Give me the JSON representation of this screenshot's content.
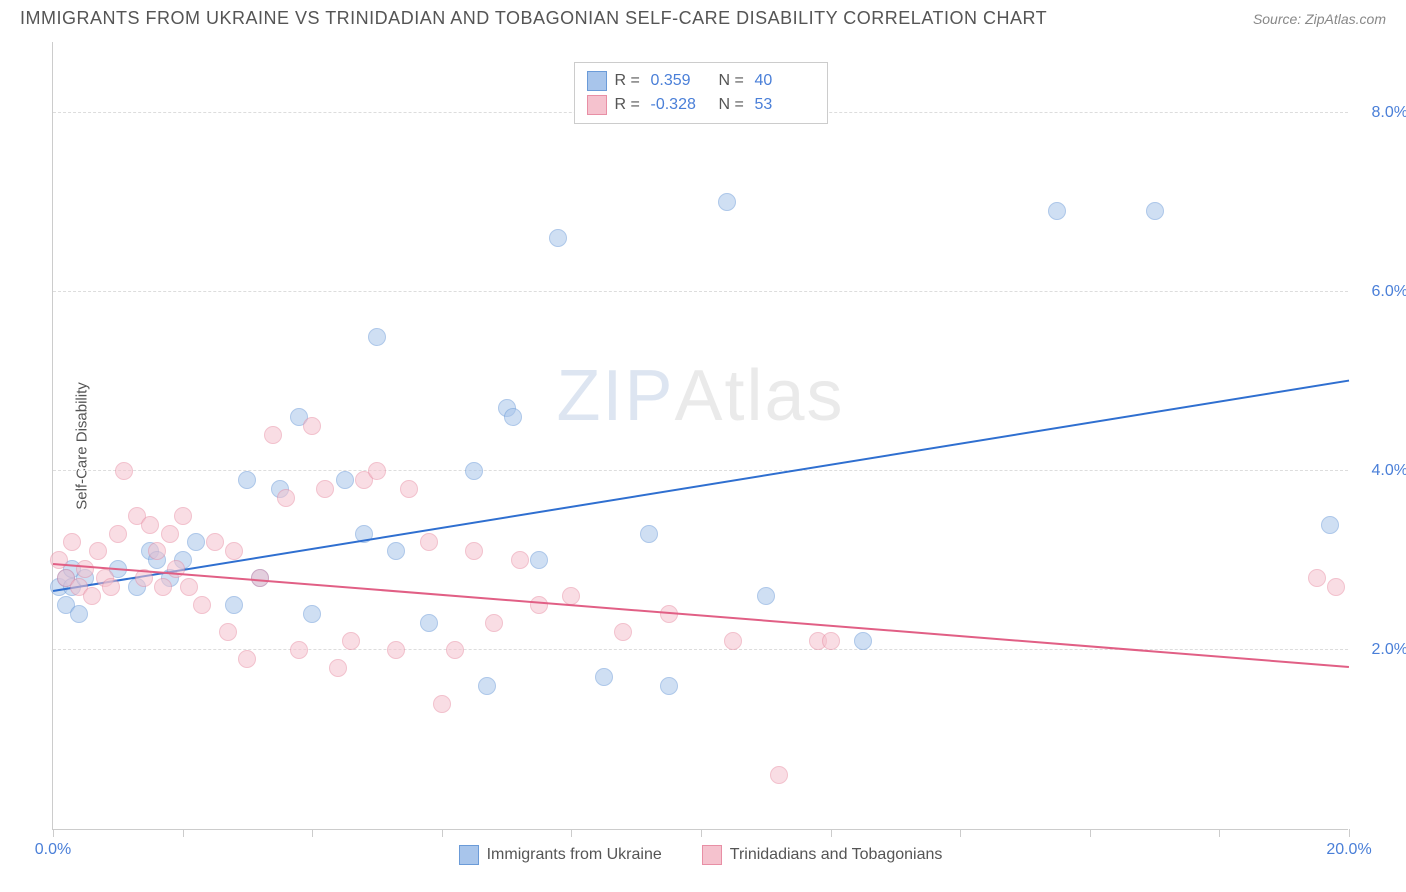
{
  "title": "IMMIGRANTS FROM UKRAINE VS TRINIDADIAN AND TOBAGONIAN SELF-CARE DISABILITY CORRELATION CHART",
  "source": "Source: ZipAtlas.com",
  "y_axis_label": "Self-Care Disability",
  "watermark_a": "ZIP",
  "watermark_b": "Atlas",
  "chart": {
    "type": "scatter",
    "xlim": [
      0,
      20
    ],
    "ylim": [
      0,
      8.8
    ],
    "y_ticks": [
      2.0,
      4.0,
      6.0,
      8.0
    ],
    "y_tick_labels": [
      "2.0%",
      "4.0%",
      "6.0%",
      "8.0%"
    ],
    "x_ticks": [
      0,
      2,
      4,
      6,
      8,
      10,
      12,
      14,
      16,
      18,
      20
    ],
    "x_tick_labels_shown": {
      "0": "0.0%",
      "20": "20.0%"
    },
    "grid_color": "#dddddd",
    "axis_color": "#cccccc",
    "background": "#ffffff",
    "point_radius": 9,
    "point_opacity": 0.55,
    "series": [
      {
        "id": "ukraine",
        "label": "Immigrants from Ukraine",
        "color_fill": "#a8c5eb",
        "color_stroke": "#6b9bd8",
        "R": "0.359",
        "N": "40",
        "trend": {
          "x1": 0,
          "y1": 2.65,
          "x2": 20,
          "y2": 5.0,
          "color": "#2f6fd0",
          "width": 2
        },
        "points": [
          [
            0.1,
            2.7
          ],
          [
            0.2,
            2.8
          ],
          [
            0.2,
            2.5
          ],
          [
            0.3,
            2.7
          ],
          [
            0.3,
            2.9
          ],
          [
            0.4,
            2.4
          ],
          [
            0.5,
            2.8
          ],
          [
            1.0,
            2.9
          ],
          [
            1.3,
            2.7
          ],
          [
            1.5,
            3.1
          ],
          [
            1.6,
            3.0
          ],
          [
            1.8,
            2.8
          ],
          [
            2.0,
            3.0
          ],
          [
            2.2,
            3.2
          ],
          [
            2.8,
            2.5
          ],
          [
            3.0,
            3.9
          ],
          [
            3.2,
            2.8
          ],
          [
            3.5,
            3.8
          ],
          [
            3.8,
            4.6
          ],
          [
            4.0,
            2.4
          ],
          [
            4.5,
            3.9
          ],
          [
            4.8,
            3.3
          ],
          [
            5.0,
            5.5
          ],
          [
            5.3,
            3.1
          ],
          [
            5.8,
            2.3
          ],
          [
            6.5,
            4.0
          ],
          [
            6.7,
            1.6
          ],
          [
            7.0,
            4.7
          ],
          [
            7.1,
            4.6
          ],
          [
            7.5,
            3.0
          ],
          [
            7.8,
            6.6
          ],
          [
            8.5,
            1.7
          ],
          [
            9.2,
            3.3
          ],
          [
            9.5,
            1.6
          ],
          [
            10.4,
            7.0
          ],
          [
            11.0,
            2.6
          ],
          [
            12.5,
            2.1
          ],
          [
            15.5,
            6.9
          ],
          [
            17.0,
            6.9
          ],
          [
            19.7,
            3.4
          ]
        ]
      },
      {
        "id": "trinidad",
        "label": "Trinidadians and Tobagonians",
        "color_fill": "#f5c2ce",
        "color_stroke": "#e88fa5",
        "R": "-0.328",
        "N": "53",
        "trend": {
          "x1": 0,
          "y1": 2.95,
          "x2": 20,
          "y2": 1.8,
          "color": "#e15f85",
          "width": 2
        },
        "points": [
          [
            0.1,
            3.0
          ],
          [
            0.2,
            2.8
          ],
          [
            0.3,
            3.2
          ],
          [
            0.4,
            2.7
          ],
          [
            0.5,
            2.9
          ],
          [
            0.6,
            2.6
          ],
          [
            0.7,
            3.1
          ],
          [
            0.8,
            2.8
          ],
          [
            0.9,
            2.7
          ],
          [
            1.0,
            3.3
          ],
          [
            1.1,
            4.0
          ],
          [
            1.3,
            3.5
          ],
          [
            1.4,
            2.8
          ],
          [
            1.5,
            3.4
          ],
          [
            1.6,
            3.1
          ],
          [
            1.7,
            2.7
          ],
          [
            1.8,
            3.3
          ],
          [
            1.9,
            2.9
          ],
          [
            2.0,
            3.5
          ],
          [
            2.1,
            2.7
          ],
          [
            2.3,
            2.5
          ],
          [
            2.5,
            3.2
          ],
          [
            2.7,
            2.2
          ],
          [
            2.8,
            3.1
          ],
          [
            3.0,
            1.9
          ],
          [
            3.2,
            2.8
          ],
          [
            3.4,
            4.4
          ],
          [
            3.6,
            3.7
          ],
          [
            3.8,
            2.0
          ],
          [
            4.0,
            4.5
          ],
          [
            4.2,
            3.8
          ],
          [
            4.4,
            1.8
          ],
          [
            4.6,
            2.1
          ],
          [
            4.8,
            3.9
          ],
          [
            5.0,
            4.0
          ],
          [
            5.3,
            2.0
          ],
          [
            5.5,
            3.8
          ],
          [
            5.8,
            3.2
          ],
          [
            6.0,
            1.4
          ],
          [
            6.2,
            2.0
          ],
          [
            6.5,
            3.1
          ],
          [
            6.8,
            2.3
          ],
          [
            7.2,
            3.0
          ],
          [
            7.5,
            2.5
          ],
          [
            8.0,
            2.6
          ],
          [
            8.8,
            2.2
          ],
          [
            9.5,
            2.4
          ],
          [
            10.5,
            2.1
          ],
          [
            11.2,
            0.6
          ],
          [
            11.8,
            2.1
          ],
          [
            12.0,
            2.1
          ],
          [
            19.8,
            2.7
          ],
          [
            19.5,
            2.8
          ]
        ]
      }
    ],
    "stats_box": {
      "rows": [
        {
          "swatch_fill": "#a8c5eb",
          "swatch_stroke": "#6b9bd8",
          "R": "0.359",
          "N": "40"
        },
        {
          "swatch_fill": "#f5c2ce",
          "swatch_stroke": "#e88fa5",
          "R": "-0.328",
          "N": "53"
        }
      ]
    }
  }
}
